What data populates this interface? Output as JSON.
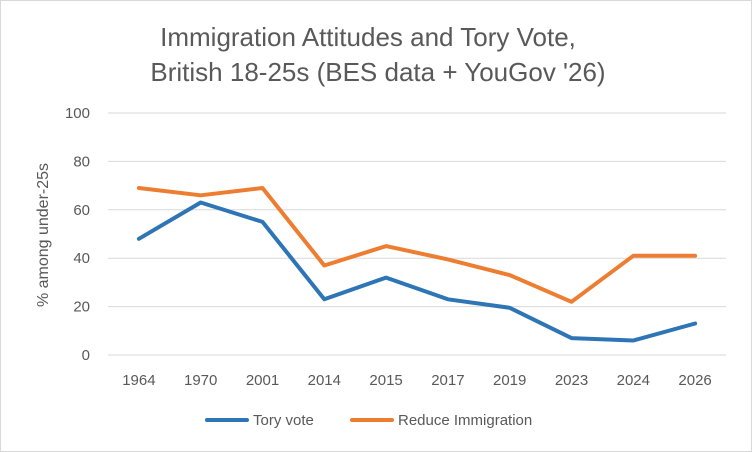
{
  "chart_data": {
    "type": "line",
    "title_lines": [
      "Immigration Attitudes and Tory Vote,",
      "British 18-25s (BES data + YouGov '26)"
    ],
    "xlabel": "",
    "ylabel": "% among under-25s",
    "ylim": [
      0,
      100
    ],
    "yticks": [
      0,
      20,
      40,
      60,
      80,
      100
    ],
    "grid": true,
    "legend_position": "bottom",
    "categories": [
      "1964",
      "1970",
      "2001",
      "2014",
      "2015",
      "2017",
      "2019",
      "2023",
      "2024",
      "2026"
    ],
    "series": [
      {
        "name": "Tory vote",
        "color": "#2e75b6",
        "values": [
          48,
          63,
          55,
          23,
          32,
          23,
          19.5,
          7,
          6,
          13
        ]
      },
      {
        "name": "Reduce Immigration",
        "color": "#ed7d31",
        "values": [
          69,
          66,
          69,
          37,
          45,
          39.5,
          33,
          22,
          41,
          41
        ]
      }
    ]
  }
}
